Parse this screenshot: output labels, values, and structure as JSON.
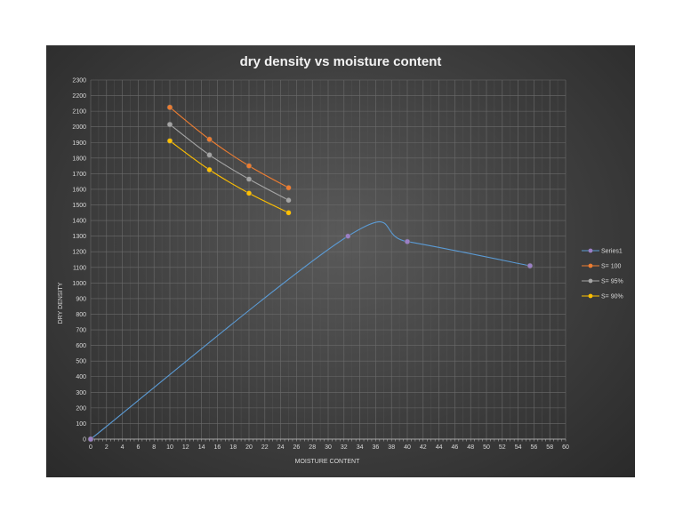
{
  "chart_data": {
    "type": "scatter",
    "title": "dry density vs moisture content",
    "xlabel": "MOISTURE CONTENT",
    "ylabel": "DRY DENSITY",
    "xlim": [
      0,
      60
    ],
    "ylim": [
      0,
      2300
    ],
    "x_major": 2,
    "y_major": 100,
    "grid": true,
    "legend_position": "right",
    "series": [
      {
        "name": "Series1",
        "color": "#5b9bd5",
        "marker_color": "#9a7fc5",
        "points": [
          [
            0,
            0
          ],
          [
            32.5,
            1300
          ],
          [
            40,
            1265
          ],
          [
            55.5,
            1110
          ]
        ]
      },
      {
        "name": "S= 100",
        "color": "#ed7d31",
        "marker_color": "#ed7d31",
        "points": [
          [
            10,
            2125
          ],
          [
            15,
            1920
          ],
          [
            20,
            1750
          ],
          [
            25,
            1610
          ]
        ]
      },
      {
        "name": "S= 95%",
        "color": "#a5a5a5",
        "marker_color": "#a5a5a5",
        "points": [
          [
            10,
            2015
          ],
          [
            15,
            1820
          ],
          [
            20,
            1665
          ],
          [
            25,
            1530
          ]
        ]
      },
      {
        "name": "S= 90%",
        "color": "#ffc000",
        "marker_color": "#ffc000",
        "points": [
          [
            10,
            1910
          ],
          [
            15,
            1725
          ],
          [
            20,
            1575
          ],
          [
            25,
            1450
          ]
        ]
      }
    ]
  }
}
